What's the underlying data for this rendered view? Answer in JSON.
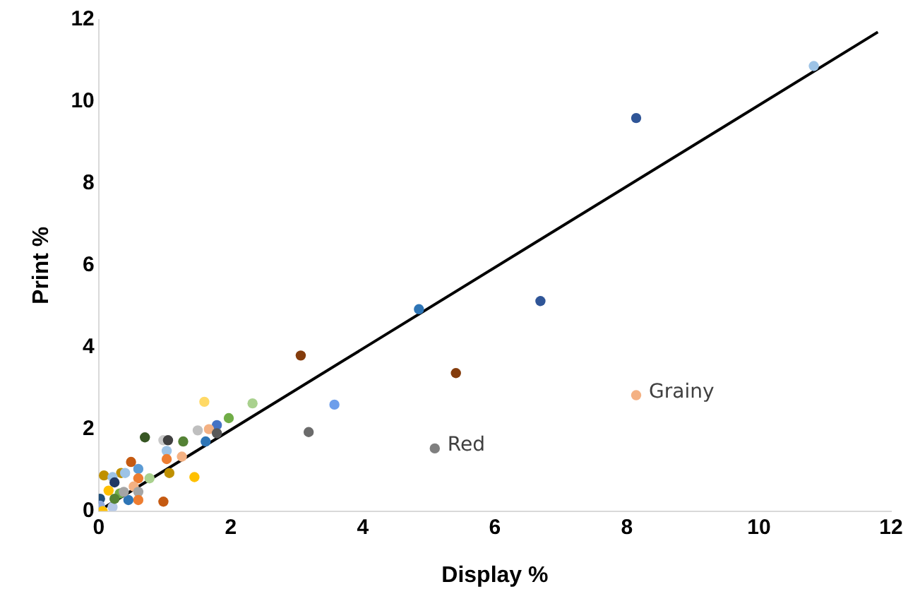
{
  "chart_data": {
    "type": "scatter",
    "xlabel": "Display %",
    "ylabel": "Print %",
    "xlim": [
      0,
      12
    ],
    "xticks": [
      0,
      2,
      4,
      6,
      8,
      10,
      12
    ],
    "ylim": [
      0,
      12
    ],
    "yticks": [
      0,
      2,
      4,
      6,
      8,
      10,
      12
    ],
    "grid": false,
    "legend": false,
    "marker": "circle",
    "series": [
      {
        "x": [
          10.83,
          8.14,
          6.69,
          4.85,
          3.06,
          5.41,
          8.14,
          5.09,
          3.57,
          3.18,
          2.33,
          1.6,
          1.97,
          1.79,
          1.67,
          1.5,
          1.79,
          1.62,
          0.7,
          0.98,
          1.05,
          1.28,
          1.03,
          1.03,
          1.26,
          0.49,
          0.6,
          1.07,
          1.45,
          0.08,
          0.34,
          0.21,
          0.4,
          0.24,
          0.6,
          0.77,
          0.53,
          0.6,
          0.6,
          0.98,
          0.45,
          0.15,
          0.32,
          0.38,
          0.02,
          0.02,
          0.06,
          0.21,
          0.24
        ],
        "values": [
          10.87,
          9.6,
          5.13,
          4.93,
          3.8,
          3.37,
          2.83,
          1.53,
          2.6,
          1.93,
          2.63,
          2.67,
          2.27,
          2.1,
          2.0,
          1.97,
          1.9,
          1.7,
          1.8,
          1.73,
          1.73,
          1.7,
          1.47,
          1.27,
          1.33,
          1.2,
          1.03,
          0.93,
          0.83,
          0.87,
          0.93,
          0.83,
          0.93,
          0.7,
          0.8,
          0.8,
          0.6,
          0.47,
          0.27,
          0.23,
          0.27,
          0.5,
          0.43,
          0.47,
          0.3,
          0.13,
          0.0,
          0.1,
          0.3
        ],
        "colors": [
          "#9dc3e6",
          "#2f5597",
          "#2f5597",
          "#2e75b6",
          "#843c0c",
          "#843c0c",
          "#f4b183",
          "#7f7f7f",
          "#6d9eeb",
          "#6b6b6b",
          "#a9d18e",
          "#ffd966",
          "#70ad47",
          "#4472c4",
          "#f4b183",
          "#bfbfbf",
          "#595959",
          "#2e75b6",
          "#375623",
          "#c9c9c9",
          "#404040",
          "#548235",
          "#9dc3e6",
          "#ed7d31",
          "#f4b183",
          "#c55a11",
          "#5b9bd5",
          "#bf9000",
          "#ffc000",
          "#bf9000",
          "#bf9000",
          "#9dc3e6",
          "#9dc3e6",
          "#1f3864",
          "#ed7d31",
          "#a9d18e",
          "#f4b183",
          "#a5a5a5",
          "#ed7d31",
          "#c55a11",
          "#2e75b6",
          "#ffc000",
          "#70ad47",
          "#a5a5a5",
          "#1f4e79",
          "#8faadc",
          "#ffc000",
          "#b4c7e7",
          "#548235"
        ]
      },
      {
        "type": "line",
        "marker": "none",
        "x": [
          0.1,
          11.8
        ],
        "values": [
          0.1,
          11.7
        ],
        "color": "#000000"
      }
    ],
    "annotations": [
      {
        "text": "Grainy",
        "x": 8.14,
        "y": 2.83
      },
      {
        "text": "Red",
        "x": 5.09,
        "y": 1.53
      }
    ]
  }
}
